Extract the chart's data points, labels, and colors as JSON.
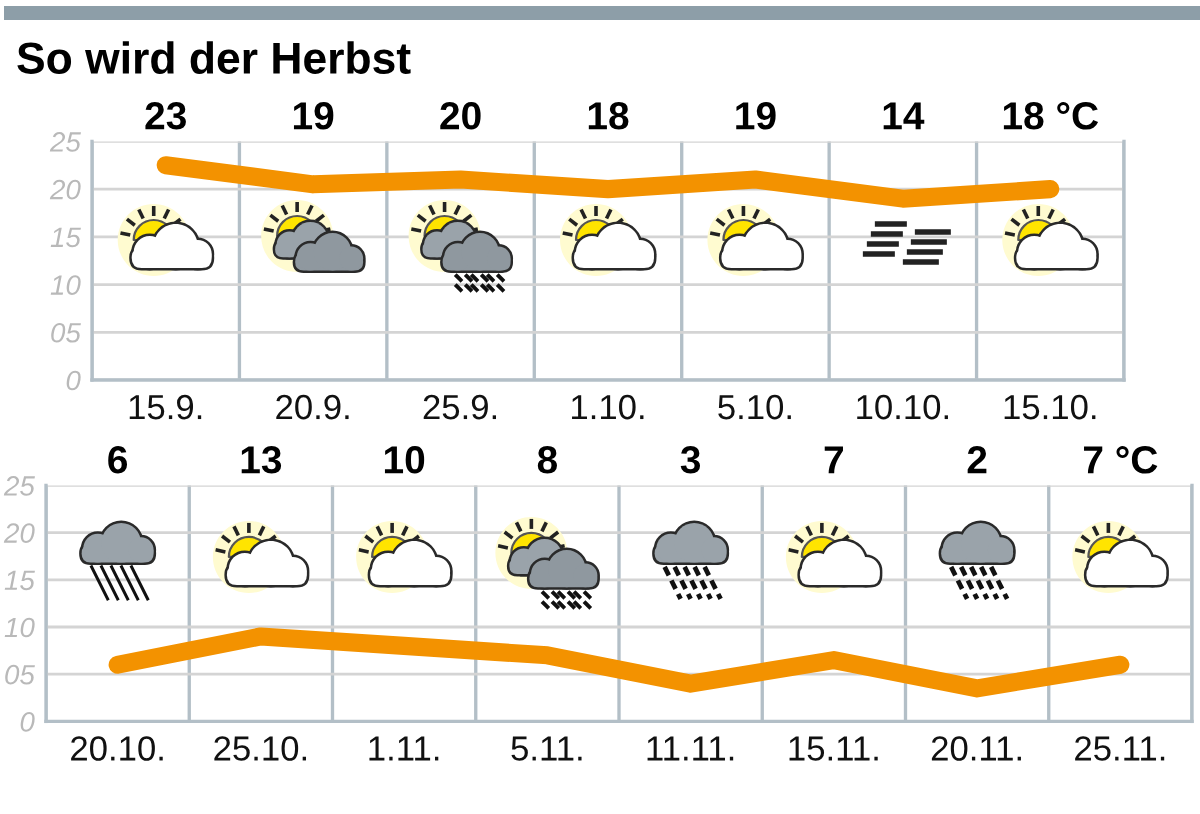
{
  "chart_data": [
    {
      "type": "line",
      "title": "So wird der Herbst",
      "categories": [
        "15.9.",
        "20.9.",
        "25.9.",
        "1.10.",
        "5.10.",
        "10.10.",
        "15.10."
      ],
      "series": [
        {
          "color": "#f39200",
          "values": [
            22.5,
            20.5,
            21,
            20,
            21,
            19,
            20
          ]
        }
      ],
      "ylim": [
        0,
        25
      ],
      "yticks": [
        0,
        {
          "value": 5,
          "label": "05"
        },
        10,
        15,
        20,
        25
      ],
      "grid": true,
      "line_style": "solid",
      "annotations": [
        "23",
        "19",
        "20",
        "18",
        "19",
        "14",
        "18 °C"
      ]
    },
    {
      "type": "line",
      "categories": [
        "20.10.",
        "25.10.",
        "1.11.",
        "5.11.",
        "11.11.",
        "15.11.",
        "20.11.",
        "25.11."
      ],
      "series": [
        {
          "color": "#f39200",
          "values": [
            6,
            9,
            8,
            7,
            4,
            6.5,
            3.5,
            6
          ]
        }
      ],
      "ylim": [
        0,
        25
      ],
      "yticks": [
        0,
        {
          "value": 5,
          "label": "05"
        },
        10,
        15,
        20,
        25
      ],
      "grid": true,
      "line_style": "solid",
      "annotations": [
        "6",
        "13",
        "10",
        "8",
        "3",
        "7",
        "2",
        "7 °C"
      ]
    }
  ]
}
